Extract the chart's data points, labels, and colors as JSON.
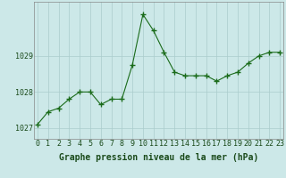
{
  "x": [
    0,
    1,
    2,
    3,
    4,
    5,
    6,
    7,
    8,
    9,
    10,
    11,
    12,
    13,
    14,
    15,
    16,
    17,
    18,
    19,
    20,
    21,
    22,
    23
  ],
  "y": [
    1027.1,
    1027.45,
    1027.55,
    1027.8,
    1028.0,
    1028.0,
    1027.65,
    1027.8,
    1027.8,
    1028.75,
    1030.15,
    1029.7,
    1029.1,
    1028.55,
    1028.45,
    1028.45,
    1028.45,
    1028.3,
    1028.45,
    1028.55,
    1028.8,
    1029.0,
    1029.1,
    1029.1
  ],
  "line_color": "#1a6b1a",
  "marker": "+",
  "marker_size": 4,
  "marker_lw": 1.0,
  "bg_color": "#cce8e8",
  "grid_color": "#aacccc",
  "xlabel": "Graphe pression niveau de la mer (hPa)",
  "xlabel_fontsize": 7,
  "yticks": [
    1027,
    1028,
    1029
  ],
  "xticks": [
    0,
    1,
    2,
    3,
    4,
    5,
    6,
    7,
    8,
    9,
    10,
    11,
    12,
    13,
    14,
    15,
    16,
    17,
    18,
    19,
    20,
    21,
    22,
    23
  ],
  "ylim": [
    1026.7,
    1030.5
  ],
  "xlim": [
    -0.3,
    23.3
  ],
  "tick_fontsize": 6,
  "tick_color": "#1a4a1a",
  "line_width": 0.8
}
